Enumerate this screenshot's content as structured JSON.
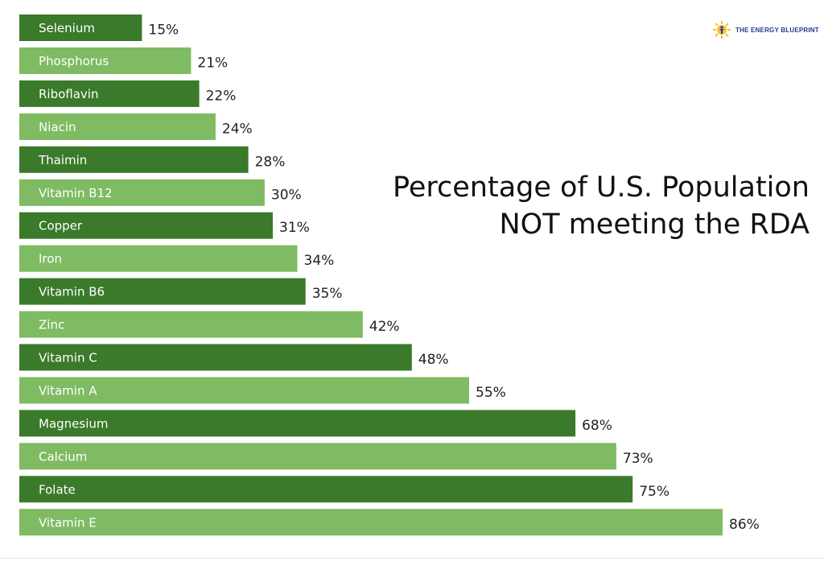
{
  "chart_data": {
    "type": "bar",
    "orientation": "horizontal",
    "title_lines": [
      "Percentage of U.S. Population",
      "NOT meeting the RDA"
    ],
    "categories": [
      "Selenium",
      "Phosphorus",
      "Riboflavin",
      "Niacin",
      "Thaimin",
      "Vitamin B12",
      "Copper",
      "Iron",
      "Vitamin B6",
      "Zinc",
      "Vitamin C",
      "Vitamin A",
      "Magnesium",
      "Calcium",
      "Folate",
      "Vitamin E"
    ],
    "values": [
      15,
      21,
      22,
      24,
      28,
      30,
      31,
      34,
      35,
      42,
      48,
      55,
      68,
      73,
      75,
      86
    ],
    "value_labels": [
      "15%",
      "21%",
      "22%",
      "24%",
      "28%",
      "30%",
      "31%",
      "34%",
      "35%",
      "42%",
      "48%",
      "55%",
      "68%",
      "73%",
      "75%",
      "86%"
    ],
    "xlim": [
      0,
      100
    ],
    "grid": false,
    "colors": {
      "dark": "#3a7a2a",
      "light": "#7fbb62"
    }
  },
  "logo": {
    "text": "THE ENERGY BLUEPRINT",
    "icon": "sun-figure-icon",
    "colors": {
      "sun": "#f2c230",
      "figure": "#243a8f"
    }
  }
}
